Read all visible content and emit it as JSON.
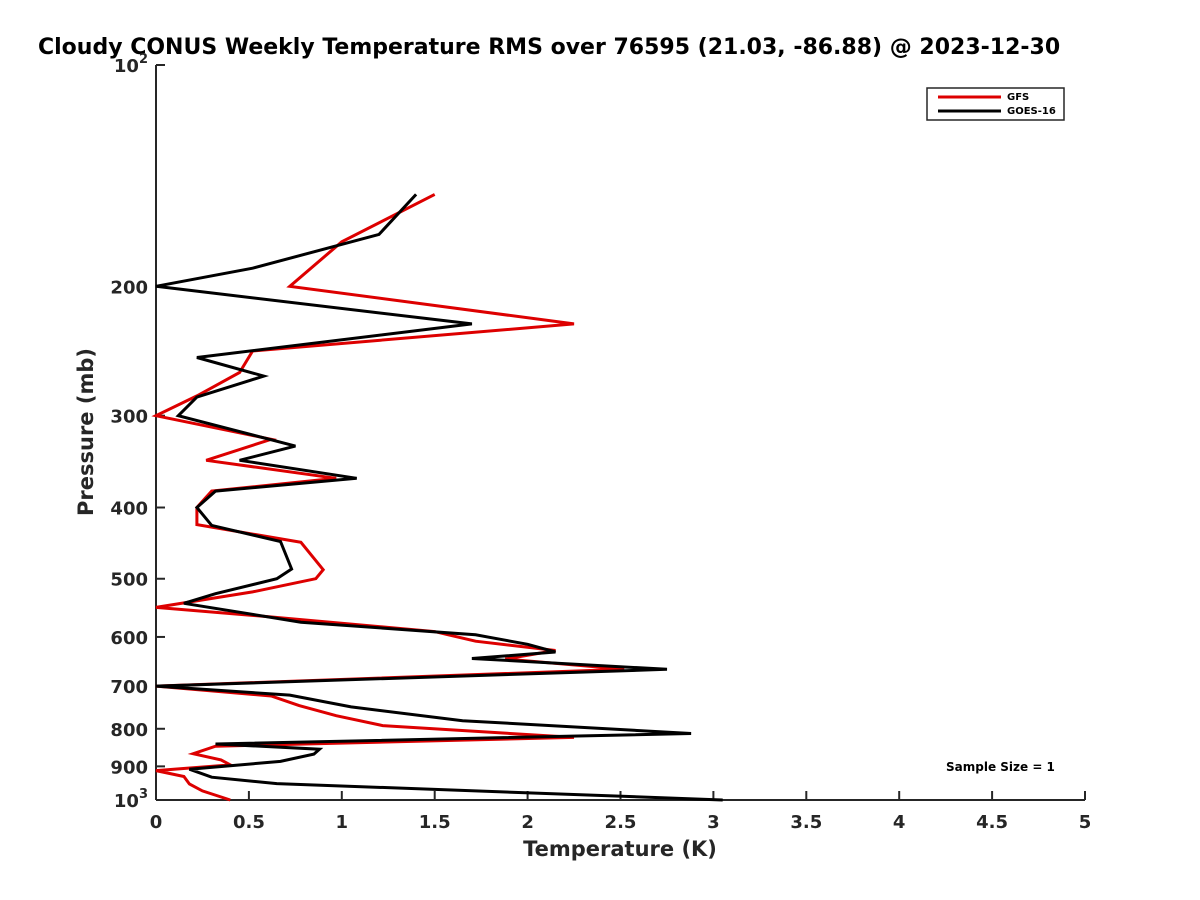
{
  "chart_data": {
    "type": "line",
    "title": "Cloudy CONUS Weekly Temperature RMS over 76595 (21.03, -86.88) @ 2023-12-30",
    "xlabel": "Temperature (K)",
    "ylabel": "Pressure (mb)",
    "xlim": [
      0,
      5
    ],
    "ylim": [
      100,
      1000
    ],
    "yscale": "log",
    "y_reversed": true,
    "xticks": [
      0,
      0.5,
      1,
      1.5,
      2,
      2.5,
      3,
      3.5,
      4,
      4.5,
      5
    ],
    "xtick_labels": [
      "0",
      "0.5",
      "1",
      "1.5",
      "2",
      "2.5",
      "3",
      "3.5",
      "4",
      "4.5",
      "5"
    ],
    "yticks": [
      100,
      200,
      300,
      400,
      500,
      600,
      700,
      800,
      900,
      1000
    ],
    "ytick_labels": [
      {
        "base": "10",
        "exp": "2"
      },
      {
        "base": "200",
        "exp": ""
      },
      {
        "base": "300",
        "exp": ""
      },
      {
        "base": "400",
        "exp": ""
      },
      {
        "base": "500",
        "exp": ""
      },
      {
        "base": "600",
        "exp": ""
      },
      {
        "base": "700",
        "exp": ""
      },
      {
        "base": "800",
        "exp": ""
      },
      {
        "base": "900",
        "exp": ""
      },
      {
        "base": "10",
        "exp": "3"
      }
    ],
    "grid": false,
    "legend_position": "top-right",
    "annotation": "Sample Size = 1",
    "series": [
      {
        "name": "GFS",
        "color": "#dd0000",
        "points": [
          [
            1.5,
            150
          ],
          [
            1.0,
            174
          ],
          [
            0.72,
            200
          ],
          [
            2.25,
            225
          ],
          [
            0.52,
            245
          ],
          [
            0.45,
            262
          ],
          [
            0.22,
            282
          ],
          [
            0.0,
            300
          ],
          [
            0.62,
            323
          ],
          [
            0.27,
            345
          ],
          [
            0.97,
            365
          ],
          [
            0.3,
            380
          ],
          [
            0.22,
            400
          ],
          [
            0.22,
            422
          ],
          [
            0.78,
            446
          ],
          [
            0.9,
            486
          ],
          [
            0.86,
            500
          ],
          [
            0.52,
            521
          ],
          [
            0.0,
            547
          ],
          [
            0.6,
            563
          ],
          [
            1.5,
            590
          ],
          [
            1.72,
            608
          ],
          [
            2.15,
            626
          ],
          [
            1.88,
            643
          ],
          [
            2.52,
            664
          ],
          [
            0.0,
            700
          ],
          [
            0.62,
            722
          ],
          [
            0.77,
            744
          ],
          [
            0.97,
            768
          ],
          [
            1.22,
            792
          ],
          [
            2.25,
            822
          ],
          [
            0.32,
            845
          ],
          [
            0.2,
            865
          ],
          [
            0.35,
            882
          ],
          [
            0.4,
            896
          ],
          [
            0.0,
            912
          ],
          [
            0.15,
            929
          ],
          [
            0.18,
            951
          ],
          [
            0.25,
            972
          ],
          [
            0.4,
            1000
          ]
        ]
      },
      {
        "name": "GOES-16",
        "color": "#000000",
        "points": [
          [
            1.4,
            150
          ],
          [
            1.2,
            170
          ],
          [
            0.52,
            189
          ],
          [
            0.0,
            200
          ],
          [
            1.7,
            225
          ],
          [
            0.22,
            250
          ],
          [
            0.58,
            265
          ],
          [
            0.22,
            283
          ],
          [
            0.12,
            300
          ],
          [
            0.75,
            330
          ],
          [
            0.45,
            345
          ],
          [
            1.08,
            365
          ],
          [
            0.32,
            380
          ],
          [
            0.22,
            400
          ],
          [
            0.3,
            423
          ],
          [
            0.67,
            445
          ],
          [
            0.73,
            485
          ],
          [
            0.65,
            500
          ],
          [
            0.32,
            524
          ],
          [
            0.15,
            540
          ],
          [
            0.78,
            573
          ],
          [
            1.72,
            596
          ],
          [
            2.0,
            614
          ],
          [
            2.15,
            629
          ],
          [
            1.7,
            642
          ],
          [
            2.75,
            664
          ],
          [
            0.0,
            700
          ],
          [
            0.72,
            720
          ],
          [
            1.05,
            747
          ],
          [
            1.65,
            780
          ],
          [
            2.88,
            812
          ],
          [
            0.32,
            839
          ],
          [
            0.88,
            853
          ],
          [
            0.85,
            866
          ],
          [
            0.67,
            886
          ],
          [
            0.18,
            908
          ],
          [
            0.3,
            931
          ],
          [
            0.65,
            950
          ],
          [
            3.05,
            1000
          ]
        ]
      }
    ]
  }
}
